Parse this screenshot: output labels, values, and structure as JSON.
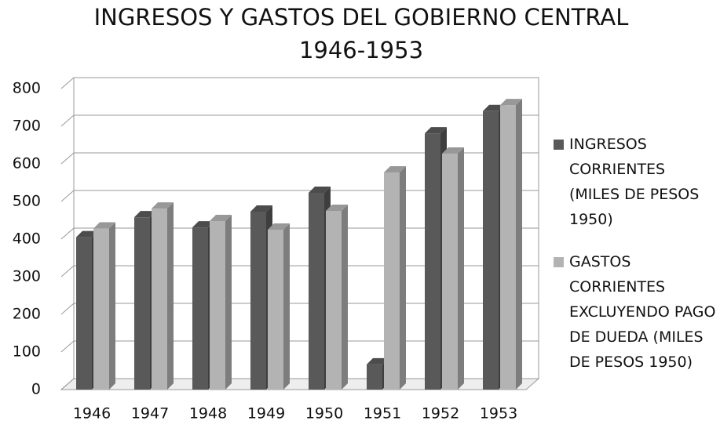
{
  "chart_data": {
    "type": "bar",
    "title": "INGRESOS Y GASTOS DEL GOBIERNO CENTRAL",
    "subtitle": "1946-1953",
    "categories": [
      "1946",
      "1947",
      "1948",
      "1949",
      "1950",
      "1951",
      "1952",
      "1953"
    ],
    "series": [
      {
        "name": "INGRESOS CORRIENTES (MILES DE PESOS 1950)",
        "color": "#595959",
        "values": [
          405,
          458,
          431,
          473,
          523,
          67,
          681,
          740
        ]
      },
      {
        "name": "GASTOS CORRIENTES EXCLUYENDO PAGO DE DUEDA (MILES DE PESOS 1950)",
        "color": "#b3b3b3",
        "values": [
          428,
          481,
          448,
          425,
          475,
          577,
          627,
          756
        ]
      }
    ],
    "ylim": [
      0,
      800
    ],
    "yticks": [
      0,
      100,
      200,
      300,
      400,
      500,
      600,
      700,
      800
    ],
    "grid": true,
    "legend": "right"
  }
}
